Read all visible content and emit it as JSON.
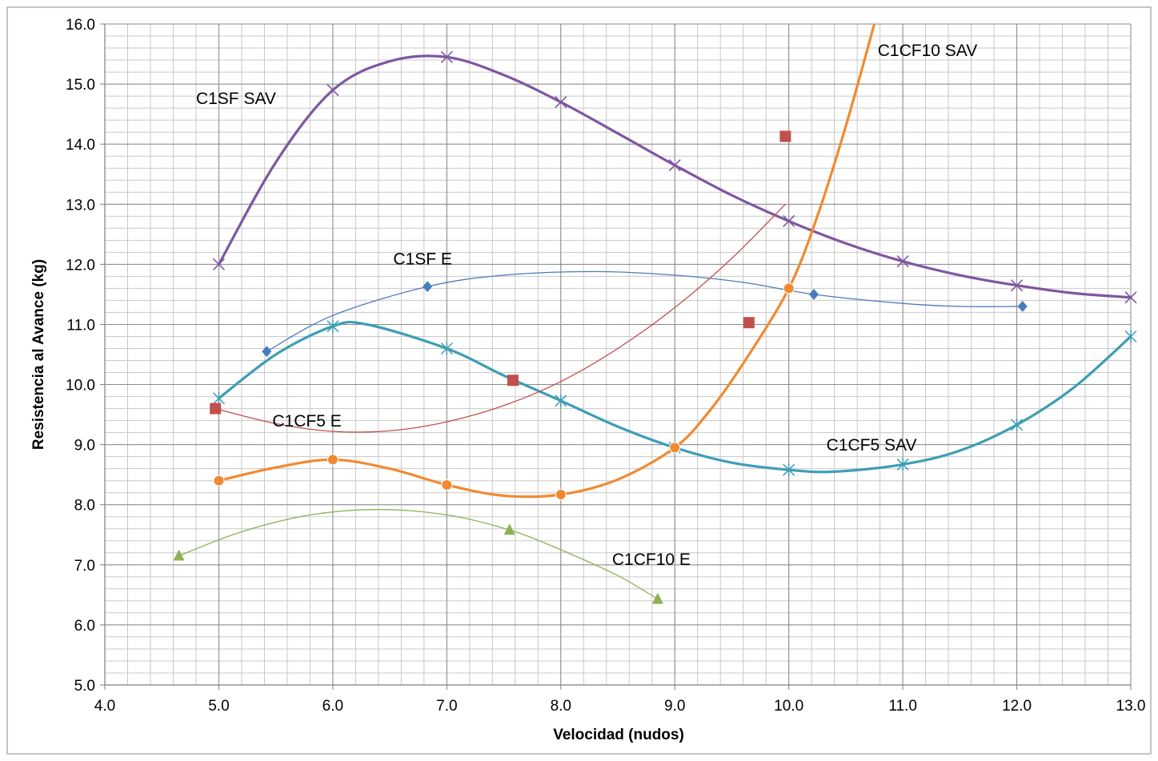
{
  "chart_data": {
    "type": "scatter",
    "title": "",
    "xlabel": "Velocidad (nudos)",
    "ylabel": "Resistencia al Avance (kg)",
    "xlim": [
      4.0,
      13.0
    ],
    "ylim": [
      5.0,
      16.0
    ],
    "x_ticks": [
      "4.0",
      "5.0",
      "6.0",
      "7.0",
      "8.0",
      "9.0",
      "10.0",
      "11.0",
      "12.0",
      "13.0"
    ],
    "y_ticks": [
      "5.0",
      "6.0",
      "7.0",
      "8.0",
      "9.0",
      "10.0",
      "11.0",
      "12.0",
      "13.0",
      "14.0",
      "15.0",
      "16.0"
    ],
    "grid": true,
    "legend": "none",
    "series": [
      {
        "name": "C1SF SAV",
        "color": "#7e57a0",
        "marker": "x",
        "points": [
          [
            5.0,
            12.0
          ],
          [
            6.0,
            14.9
          ],
          [
            7.0,
            15.45
          ],
          [
            8.0,
            14.7
          ],
          [
            9.0,
            13.65
          ],
          [
            10.0,
            12.72
          ],
          [
            11.0,
            12.05
          ],
          [
            12.0,
            11.65
          ],
          [
            13.0,
            11.45
          ]
        ],
        "curve": [
          [
            5.0,
            12.0
          ],
          [
            5.5,
            13.7
          ],
          [
            6.0,
            14.9
          ],
          [
            6.5,
            15.38
          ],
          [
            7.0,
            15.45
          ],
          [
            7.5,
            15.15
          ],
          [
            8.0,
            14.7
          ],
          [
            8.5,
            14.18
          ],
          [
            9.0,
            13.65
          ],
          [
            9.5,
            13.15
          ],
          [
            10.0,
            12.72
          ],
          [
            10.5,
            12.35
          ],
          [
            11.0,
            12.05
          ],
          [
            11.5,
            11.82
          ],
          [
            12.0,
            11.65
          ],
          [
            12.5,
            11.52
          ],
          [
            13.0,
            11.45
          ]
        ]
      },
      {
        "name": "C1SF E",
        "color": "#4a7bbd",
        "marker": "diamond",
        "points": [
          [
            5.42,
            10.55
          ],
          [
            6.83,
            11.63
          ],
          [
            10.22,
            11.5
          ],
          [
            12.05,
            11.3
          ]
        ],
        "curve": [
          [
            5.42,
            10.55
          ],
          [
            6.0,
            11.15
          ],
          [
            6.83,
            11.63
          ],
          [
            7.5,
            11.82
          ],
          [
            8.3,
            11.88
          ],
          [
            9.0,
            11.82
          ],
          [
            9.6,
            11.7
          ],
          [
            10.22,
            11.5
          ],
          [
            11.0,
            11.35
          ],
          [
            11.5,
            11.3
          ],
          [
            12.05,
            11.3
          ]
        ]
      },
      {
        "name": "C1CF5 SAV",
        "color": "#3d9eb5",
        "marker": "asterisk",
        "points": [
          [
            5.0,
            9.77
          ],
          [
            6.0,
            10.97
          ],
          [
            7.0,
            10.6
          ],
          [
            8.0,
            9.73
          ],
          [
            9.0,
            8.95
          ],
          [
            10.0,
            8.58
          ],
          [
            11.0,
            8.67
          ],
          [
            12.0,
            9.33
          ],
          [
            13.0,
            10.8
          ]
        ],
        "curve": [
          [
            5.0,
            9.77
          ],
          [
            5.5,
            10.5
          ],
          [
            6.0,
            10.97
          ],
          [
            6.3,
            11.0
          ],
          [
            7.0,
            10.6
          ],
          [
            7.5,
            10.15
          ],
          [
            8.0,
            9.73
          ],
          [
            8.5,
            9.3
          ],
          [
            9.0,
            8.95
          ],
          [
            9.5,
            8.7
          ],
          [
            10.0,
            8.58
          ],
          [
            10.4,
            8.55
          ],
          [
            11.0,
            8.67
          ],
          [
            11.5,
            8.9
          ],
          [
            12.0,
            9.33
          ],
          [
            12.5,
            9.95
          ],
          [
            13.0,
            10.8
          ]
        ]
      },
      {
        "name": "C1CF5 E",
        "color": "#c0504d",
        "marker": "square",
        "points": [
          [
            4.97,
            9.6
          ],
          [
            7.58,
            10.07
          ],
          [
            9.65,
            11.03
          ],
          [
            9.97,
            14.13
          ]
        ],
        "curve": [
          [
            4.97,
            9.6
          ],
          [
            5.5,
            9.35
          ],
          [
            6.0,
            9.22
          ],
          [
            6.5,
            9.23
          ],
          [
            7.0,
            9.38
          ],
          [
            7.5,
            9.65
          ],
          [
            8.0,
            10.05
          ],
          [
            8.5,
            10.6
          ],
          [
            9.0,
            11.28
          ],
          [
            9.5,
            12.1
          ],
          [
            9.97,
            13.0
          ]
        ]
      },
      {
        "name": "C1CF10 SAV",
        "color": "#f08a32",
        "marker": "circle",
        "points": [
          [
            5.0,
            8.4
          ],
          [
            6.0,
            8.75
          ],
          [
            7.0,
            8.33
          ],
          [
            8.0,
            8.17
          ],
          [
            9.0,
            8.95
          ],
          [
            10.0,
            11.6
          ]
        ],
        "curve": [
          [
            5.0,
            8.4
          ],
          [
            5.5,
            8.62
          ],
          [
            6.0,
            8.75
          ],
          [
            6.5,
            8.6
          ],
          [
            7.0,
            8.33
          ],
          [
            7.5,
            8.15
          ],
          [
            8.0,
            8.17
          ],
          [
            8.5,
            8.42
          ],
          [
            9.0,
            8.95
          ],
          [
            9.3,
            9.55
          ],
          [
            9.6,
            10.35
          ],
          [
            10.0,
            11.6
          ],
          [
            10.25,
            12.8
          ],
          [
            10.5,
            14.3
          ],
          [
            10.75,
            16.0
          ]
        ]
      },
      {
        "name": "C1CF10 E",
        "color": "#8cb255",
        "marker": "triangle",
        "points": [
          [
            4.65,
            7.15
          ],
          [
            7.55,
            7.58
          ],
          [
            8.85,
            6.43
          ]
        ],
        "curve": [
          [
            4.65,
            7.15
          ],
          [
            5.2,
            7.55
          ],
          [
            5.8,
            7.83
          ],
          [
            6.4,
            7.92
          ],
          [
            7.0,
            7.83
          ],
          [
            7.55,
            7.58
          ],
          [
            8.0,
            7.25
          ],
          [
            8.5,
            6.82
          ],
          [
            8.85,
            6.43
          ]
        ]
      }
    ],
    "annotations": [
      {
        "text": "C1SF SAV",
        "x": 4.8,
        "y": 14.67
      },
      {
        "text": "C1SF E",
        "x": 6.53,
        "y": 12.0
      },
      {
        "text": "C1CF5 E",
        "x": 5.47,
        "y": 9.3
      },
      {
        "text": "C1CF10 SAV",
        "x": 10.78,
        "y": 15.47
      },
      {
        "text": "C1CF5 SAV",
        "x": 10.33,
        "y": 8.9
      },
      {
        "text": "C1CF10 E",
        "x": 8.45,
        "y": 7.0
      }
    ]
  }
}
